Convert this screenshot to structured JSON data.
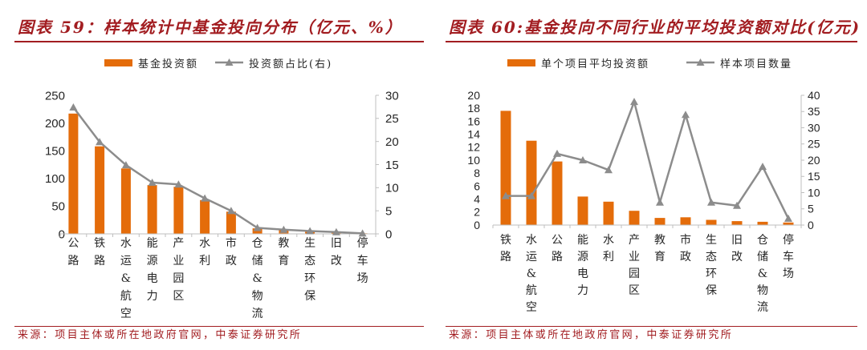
{
  "theme": {
    "accent_color": "#A21D21",
    "axis_color": "#BFBFBF",
    "text_color": "#262626"
  },
  "chart_data": [
    {
      "type": "bar",
      "title": "图表 59：样本统计中基金投向分布（亿元、%）",
      "categories": [
        "公路",
        "铁路",
        "水运&航空",
        "能源电力",
        "产业园区",
        "水利",
        "市政",
        "仓储&物流",
        "教育",
        "生态环保",
        "旧改",
        "停车场"
      ],
      "series": [
        {
          "name": "基金投资额",
          "type": "bar",
          "axis": "left",
          "color": "#E46C0A",
          "values": [
            217,
            158,
            118,
            88,
            85,
            61,
            40,
            10,
            7,
            5,
            3,
            1
          ]
        },
        {
          "name": "投资额占比(右)",
          "type": "line",
          "axis": "right",
          "color": "#8C8C8C",
          "marker": "triangle",
          "values": [
            27.4,
            19.9,
            14.9,
            11.1,
            10.7,
            7.7,
            5.0,
            1.3,
            0.9,
            0.6,
            0.4,
            0.1
          ]
        }
      ],
      "y_left": {
        "min": 0,
        "max": 250,
        "ticks": [
          0,
          50,
          100,
          150,
          200,
          250
        ]
      },
      "y_right": {
        "min": 0,
        "max": 30,
        "ticks": [
          0,
          5,
          10,
          15,
          20,
          25,
          30
        ]
      },
      "grid": false,
      "legend_position": "top",
      "source": "来源：项目主体或所在地政府官网，中泰证券研究所"
    },
    {
      "type": "bar",
      "title": "图表 60:基金投向不同行业的平均投资额对比(亿元)",
      "categories": [
        "铁路",
        "水运&航空",
        "公路",
        "能源电力",
        "水利",
        "产业园区",
        "教育",
        "市政",
        "生态环保",
        "旧改",
        "仓储&物流",
        "停车场"
      ],
      "series": [
        {
          "name": "单个项目平均投资额",
          "type": "bar",
          "axis": "left",
          "color": "#E46C0A",
          "values": [
            17.6,
            13.0,
            9.8,
            4.4,
            3.6,
            2.2,
            1.1,
            1.2,
            0.8,
            0.6,
            0.5,
            0.4
          ]
        },
        {
          "name": "样本项目数量",
          "type": "line",
          "axis": "right",
          "color": "#8C8C8C",
          "marker": "triangle",
          "values": [
            9,
            9,
            22,
            20,
            17,
            38,
            7,
            34,
            7,
            6,
            18,
            2
          ]
        }
      ],
      "y_left": {
        "min": 0,
        "max": 20,
        "ticks": [
          0,
          2,
          4,
          6,
          8,
          10,
          12,
          14,
          16,
          18,
          20
        ]
      },
      "y_right": {
        "min": 0,
        "max": 40,
        "ticks": [
          0,
          5,
          10,
          15,
          20,
          25,
          30,
          35,
          40
        ]
      },
      "grid": false,
      "legend_position": "top",
      "source": "来源：项目主体或所在地政府官网，中泰证券研究所"
    }
  ]
}
